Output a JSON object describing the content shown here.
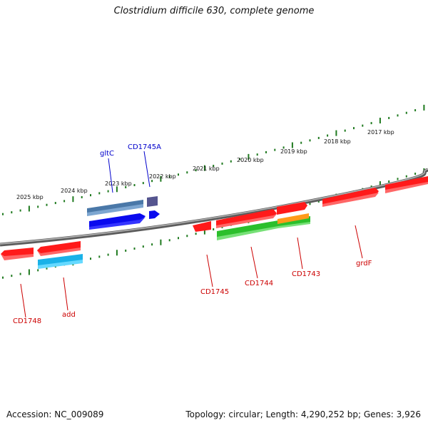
{
  "title": "Clostridium difficile 630, complete genome",
  "accession": "Accession: NC_009089",
  "summary": "Topology: circular; Length: 4,290,252 bp; Genes: 3,926",
  "colors": {
    "backbone": "#777777",
    "ruler": "#1f7a1f",
    "cds": "#ff1a1a",
    "label_bottom": "#cc0000",
    "label_top": "#0000cc"
  },
  "ruler": {
    "ticks": [
      "2025 kbp",
      "2024 kbp",
      "2023 kbp",
      "2022 kbp",
      "2021 kbp",
      "2020 kbp",
      "2019 kbp",
      "2018 kbp",
      "2017 kbp"
    ]
  },
  "labels": {
    "gltC": "gltC",
    "CD1745A": "CD1745A",
    "CD1748": "CD1748",
    "add": "add",
    "CD1745": "CD1745",
    "CD1744": "CD1744",
    "CD1743": "CD1743",
    "grdF": "grdF"
  }
}
